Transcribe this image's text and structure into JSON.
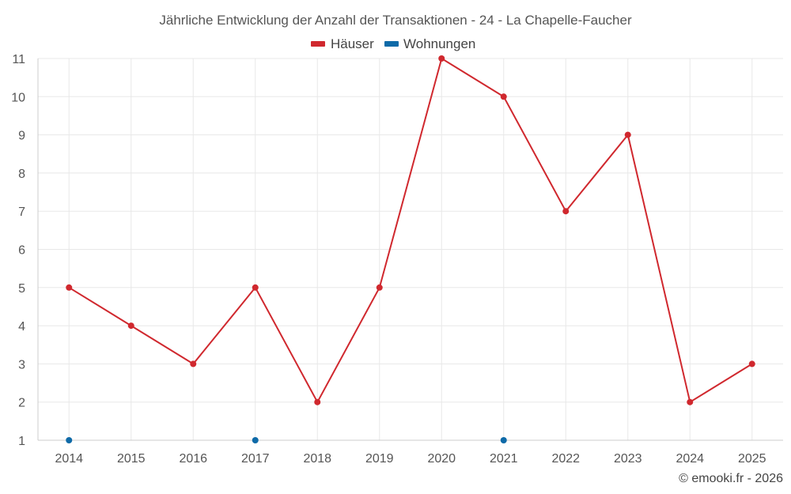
{
  "chart_data": {
    "type": "line",
    "title": "Jährliche Entwicklung der Anzahl der Transaktionen - 24 - La Chapelle-Faucher",
    "categories": [
      "2014",
      "2015",
      "2016",
      "2017",
      "2018",
      "2019",
      "2020",
      "2021",
      "2022",
      "2023",
      "2024",
      "2025"
    ],
    "ylim": [
      1,
      11
    ],
    "yticks": [
      1,
      2,
      3,
      4,
      5,
      6,
      7,
      8,
      9,
      10,
      11
    ],
    "grid": true,
    "legend_position": "top-center",
    "series": [
      {
        "name": "Häuser",
        "color": "#d0282e",
        "line": true,
        "values": [
          5,
          4,
          3,
          5,
          2,
          5,
          11,
          10,
          7,
          9,
          2,
          3
        ]
      },
      {
        "name": "Wohnungen",
        "color": "#0e6aa8",
        "line": false,
        "values": [
          1,
          null,
          null,
          1,
          null,
          null,
          null,
          1,
          null,
          null,
          null,
          null
        ]
      }
    ],
    "credit": "© emooki.fr - 2026"
  }
}
